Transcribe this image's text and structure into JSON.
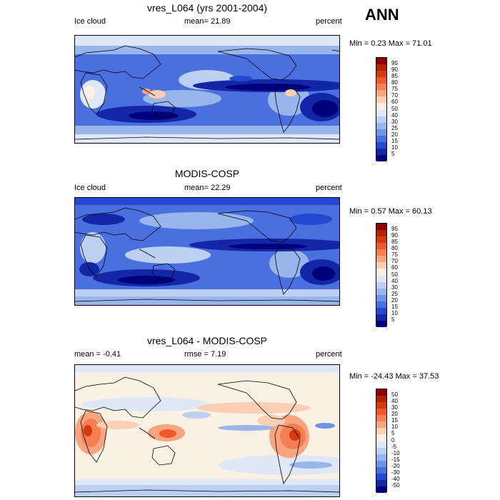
{
  "season": "ANN",
  "panels": [
    {
      "title": "vres_L064 (yrs 2001-2004)",
      "left_label": "Ice cloud",
      "center_label": "mean=  21.89",
      "right_label": "percent",
      "minmax": "Min =   0.23 Max =  71.01",
      "colorbar_labels": [
        "95",
        "90",
        "85",
        "80",
        "75",
        "70",
        "60",
        "50",
        "40",
        "30",
        "25",
        "20",
        "15",
        "10",
        "5"
      ],
      "colors": [
        "#8b0000",
        "#b22200",
        "#d83a10",
        "#ef5a2a",
        "#f57f52",
        "#f8a47e",
        "#fbcfb3",
        "#fbf0e4",
        "#dfe8f7",
        "#bcd0f1",
        "#98b6ec",
        "#6f93e6",
        "#4a70df",
        "#2548d1",
        "#1426a8",
        "#00007c"
      ]
    },
    {
      "title": "MODIS-COSP",
      "left_label": "Ice cloud",
      "center_label": "mean=  22.29",
      "right_label": "percent",
      "minmax": "Min =   0.57 Max =  60.13",
      "colorbar_labels": [
        "95",
        "90",
        "85",
        "80",
        "75",
        "70",
        "60",
        "50",
        "40",
        "30",
        "25",
        "20",
        "15",
        "10",
        "5"
      ],
      "colors": [
        "#8b0000",
        "#b22200",
        "#d83a10",
        "#ef5a2a",
        "#f57f52",
        "#f8a47e",
        "#fbcfb3",
        "#fbf0e4",
        "#dfe8f7",
        "#bcd0f1",
        "#98b6ec",
        "#6f93e6",
        "#4a70df",
        "#2548d1",
        "#1426a8",
        "#00007c"
      ]
    },
    {
      "title": "vres_L064 - MODIS-COSP",
      "left_label": "mean =  -0.41",
      "center_label": "rmse =   7.19",
      "right_label": "percent",
      "minmax": "Min = -24.43 Max =  37.53",
      "colorbar_labels": [
        "50",
        "40",
        "30",
        "20",
        "15",
        "10",
        "5",
        "0",
        "-5",
        "-10",
        "-15",
        "-20",
        "-30",
        "-40",
        "-50"
      ],
      "colors": [
        "#8b0000",
        "#b22200",
        "#d83a10",
        "#ef5a2a",
        "#f57f52",
        "#f8a47e",
        "#fbcfb3",
        "#fbf0e4",
        "#dfe8f7",
        "#bcd0f1",
        "#98b6ec",
        "#6f93e6",
        "#4a70df",
        "#2548d1",
        "#1426a8",
        "#00007c"
      ]
    }
  ],
  "chart_data": [
    {
      "type": "heatmap",
      "title": "vres_L064 (yrs 2001-2004)",
      "variable": "Ice cloud",
      "units": "percent",
      "mean": 21.89,
      "min": 0.23,
      "max": 71.01,
      "levels": [
        5,
        10,
        15,
        20,
        25,
        30,
        40,
        50,
        60,
        70,
        75,
        80,
        85,
        90,
        95
      ]
    },
    {
      "type": "heatmap",
      "title": "MODIS-COSP",
      "variable": "Ice cloud",
      "units": "percent",
      "mean": 22.29,
      "min": 0.57,
      "max": 60.13,
      "levels": [
        5,
        10,
        15,
        20,
        25,
        30,
        40,
        50,
        60,
        70,
        75,
        80,
        85,
        90,
        95
      ]
    },
    {
      "type": "heatmap",
      "title": "vres_L064 - MODIS-COSP",
      "units": "percent",
      "mean": -0.41,
      "rmse": 7.19,
      "min": -24.43,
      "max": 37.53,
      "levels": [
        -50,
        -40,
        -30,
        -20,
        -15,
        -10,
        -5,
        0,
        5,
        10,
        15,
        20,
        30,
        40,
        50
      ]
    }
  ]
}
